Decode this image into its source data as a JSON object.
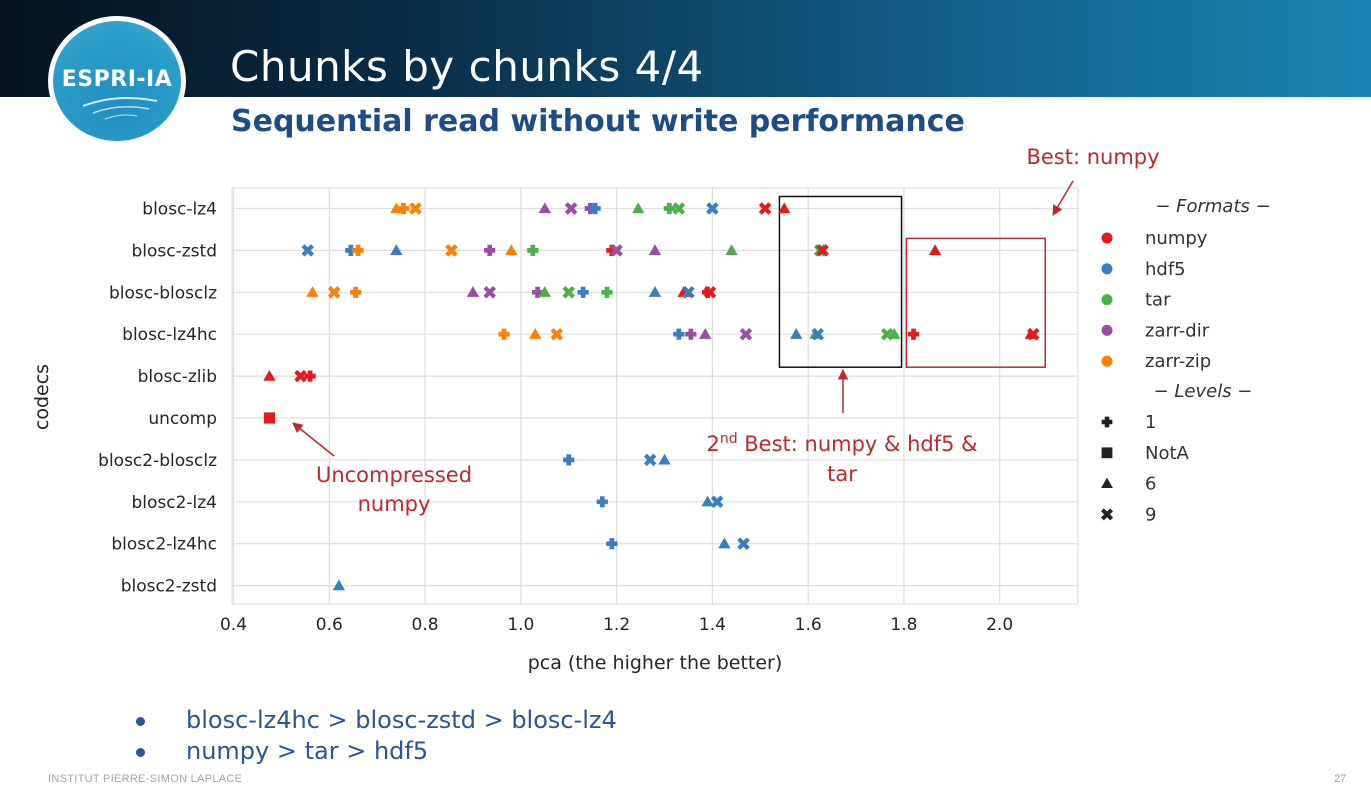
{
  "slide": {
    "logo_text": "ESPRI-IA",
    "title": "Chunks by chunks 4/4",
    "subtitle": "Sequential read without write performance",
    "bullets": [
      "blosc-lz4hc > blosc-zstd > blosc-lz4",
      "numpy > tar > hdf5"
    ],
    "footer": "INSTITUT PIERRE-SIMON LAPLACE",
    "page_number": "27"
  },
  "chart_data": {
    "type": "scatter",
    "title": "",
    "xlabel": "pca (the higher the better)",
    "ylabel": "codecs",
    "xlim": [
      0.4,
      2.15
    ],
    "xticks": [
      0.4,
      0.6,
      0.8,
      1.0,
      1.2,
      1.4,
      1.6,
      1.8,
      2.0
    ],
    "xtick_labels": [
      "0.4",
      "0.6",
      "0.8",
      "1.0",
      "1.2",
      "1.4",
      "1.6",
      "1.8",
      "2.0"
    ],
    "grid": true,
    "categories": [
      "blosc-lz4",
      "blosc-zstd",
      "blosc-blosclz",
      "blosc-lz4hc",
      "blosc-zlib",
      "uncomp",
      "blosc2-blosclz",
      "blosc2-lz4",
      "blosc2-lz4hc",
      "blosc2-zstd"
    ],
    "legend": {
      "placement": "right",
      "formats_title": "− Formats −",
      "levels_title": "− Levels −",
      "formats": [
        {
          "name": "numpy",
          "color": "#e31a1c"
        },
        {
          "name": "hdf5",
          "color": "#3a7ebf"
        },
        {
          "name": "tar",
          "color": "#4daf4a"
        },
        {
          "name": "zarr-dir",
          "color": "#984ea3"
        },
        {
          "name": "zarr-zip",
          "color": "#ff7f00"
        }
      ],
      "levels": [
        {
          "name": "1",
          "marker": "plus"
        },
        {
          "name": "NotA",
          "marker": "square"
        },
        {
          "name": "6",
          "marker": "triangle"
        },
        {
          "name": "9",
          "marker": "x"
        }
      ]
    },
    "points": [
      {
        "codec": "blosc-lz4",
        "format": "zarr-zip",
        "level": "6",
        "x": 0.74
      },
      {
        "codec": "blosc-lz4",
        "format": "zarr-zip",
        "level": "1",
        "x": 0.755
      },
      {
        "codec": "blosc-lz4",
        "format": "zarr-zip",
        "level": "9",
        "x": 0.78
      },
      {
        "codec": "blosc-lz4",
        "format": "zarr-dir",
        "level": "6",
        "x": 1.05
      },
      {
        "codec": "blosc-lz4",
        "format": "zarr-dir",
        "level": "9",
        "x": 1.105
      },
      {
        "codec": "blosc-lz4",
        "format": "zarr-dir",
        "level": "1",
        "x": 1.145
      },
      {
        "codec": "blosc-lz4",
        "format": "hdf5",
        "level": "1",
        "x": 1.155
      },
      {
        "codec": "blosc-lz4",
        "format": "tar",
        "level": "6",
        "x": 1.245
      },
      {
        "codec": "blosc-lz4",
        "format": "tar",
        "level": "1",
        "x": 1.31
      },
      {
        "codec": "blosc-lz4",
        "format": "tar",
        "level": "9",
        "x": 1.33
      },
      {
        "codec": "blosc-lz4",
        "format": "hdf5",
        "level": "9",
        "x": 1.4
      },
      {
        "codec": "blosc-lz4",
        "format": "numpy",
        "level": "9",
        "x": 1.51
      },
      {
        "codec": "blosc-lz4",
        "format": "numpy",
        "level": "6",
        "x": 1.55
      },
      {
        "codec": "blosc-zstd",
        "format": "hdf5",
        "level": "9",
        "x": 0.555
      },
      {
        "codec": "blosc-zstd",
        "format": "hdf5",
        "level": "1",
        "x": 0.645
      },
      {
        "codec": "blosc-zstd",
        "format": "zarr-zip",
        "level": "1",
        "x": 0.66
      },
      {
        "codec": "blosc-zstd",
        "format": "hdf5",
        "level": "6",
        "x": 0.74
      },
      {
        "codec": "blosc-zstd",
        "format": "zarr-zip",
        "level": "9",
        "x": 0.855
      },
      {
        "codec": "blosc-zstd",
        "format": "zarr-dir",
        "level": "1",
        "x": 0.935
      },
      {
        "codec": "blosc-zstd",
        "format": "zarr-zip",
        "level": "6",
        "x": 0.98
      },
      {
        "codec": "blosc-zstd",
        "format": "tar",
        "level": "1",
        "x": 1.025
      },
      {
        "codec": "blosc-zstd",
        "format": "numpy",
        "level": "1",
        "x": 1.19
      },
      {
        "codec": "blosc-zstd",
        "format": "zarr-dir",
        "level": "9",
        "x": 1.2
      },
      {
        "codec": "blosc-zstd",
        "format": "zarr-dir",
        "level": "6",
        "x": 1.28
      },
      {
        "codec": "blosc-zstd",
        "format": "tar",
        "level": "6",
        "x": 1.44
      },
      {
        "codec": "blosc-zstd",
        "format": "tar",
        "level": "9",
        "x": 1.625
      },
      {
        "codec": "blosc-zstd",
        "format": "numpy",
        "level": "9",
        "x": 1.63
      },
      {
        "codec": "blosc-zstd",
        "format": "numpy",
        "level": "6",
        "x": 1.865
      },
      {
        "codec": "blosc-blosclz",
        "format": "zarr-zip",
        "level": "6",
        "x": 0.565
      },
      {
        "codec": "blosc-blosclz",
        "format": "zarr-zip",
        "level": "9",
        "x": 0.61
      },
      {
        "codec": "blosc-blosclz",
        "format": "zarr-zip",
        "level": "1",
        "x": 0.655
      },
      {
        "codec": "blosc-blosclz",
        "format": "zarr-dir",
        "level": "6",
        "x": 0.9
      },
      {
        "codec": "blosc-blosclz",
        "format": "zarr-dir",
        "level": "9",
        "x": 0.935
      },
      {
        "codec": "blosc-blosclz",
        "format": "zarr-dir",
        "level": "1",
        "x": 1.035
      },
      {
        "codec": "blosc-blosclz",
        "format": "tar",
        "level": "6",
        "x": 1.05
      },
      {
        "codec": "blosc-blosclz",
        "format": "tar",
        "level": "9",
        "x": 1.1
      },
      {
        "codec": "blosc-blosclz",
        "format": "hdf5",
        "level": "1",
        "x": 1.13
      },
      {
        "codec": "blosc-blosclz",
        "format": "tar",
        "level": "1",
        "x": 1.18
      },
      {
        "codec": "blosc-blosclz",
        "format": "hdf5",
        "level": "6",
        "x": 1.28
      },
      {
        "codec": "blosc-blosclz",
        "format": "numpy",
        "level": "6",
        "x": 1.34
      },
      {
        "codec": "blosc-blosclz",
        "format": "hdf5",
        "level": "9",
        "x": 1.35
      },
      {
        "codec": "blosc-blosclz",
        "format": "numpy",
        "level": "1",
        "x": 1.39
      },
      {
        "codec": "blosc-blosclz",
        "format": "numpy",
        "level": "9",
        "x": 1.395
      },
      {
        "codec": "blosc-lz4hc",
        "format": "zarr-zip",
        "level": "1",
        "x": 0.965
      },
      {
        "codec": "blosc-lz4hc",
        "format": "zarr-zip",
        "level": "6",
        "x": 1.03
      },
      {
        "codec": "blosc-lz4hc",
        "format": "zarr-zip",
        "level": "9",
        "x": 1.075
      },
      {
        "codec": "blosc-lz4hc",
        "format": "hdf5",
        "level": "1",
        "x": 1.33
      },
      {
        "codec": "blosc-lz4hc",
        "format": "zarr-dir",
        "level": "1",
        "x": 1.355
      },
      {
        "codec": "blosc-lz4hc",
        "format": "zarr-dir",
        "level": "6",
        "x": 1.385
      },
      {
        "codec": "blosc-lz4hc",
        "format": "zarr-dir",
        "level": "9",
        "x": 1.47
      },
      {
        "codec": "blosc-lz4hc",
        "format": "hdf5",
        "level": "6",
        "x": 1.575
      },
      {
        "codec": "blosc-lz4hc",
        "format": "tar",
        "level": "6",
        "x": 1.615
      },
      {
        "codec": "blosc-lz4hc",
        "format": "hdf5",
        "level": "9",
        "x": 1.62
      },
      {
        "codec": "blosc-lz4hc",
        "format": "tar",
        "level": "9",
        "x": 1.765
      },
      {
        "codec": "blosc-lz4hc",
        "format": "tar",
        "level": "6",
        "x": 1.78
      },
      {
        "codec": "blosc-lz4hc",
        "format": "numpy",
        "level": "1",
        "x": 1.82
      },
      {
        "codec": "blosc-lz4hc",
        "format": "numpy",
        "level": "6",
        "x": 2.065
      },
      {
        "codec": "blosc-lz4hc",
        "format": "numpy",
        "level": "9",
        "x": 2.07
      },
      {
        "codec": "blosc-zlib",
        "format": "numpy",
        "level": "6",
        "x": 0.475
      },
      {
        "codec": "blosc-zlib",
        "format": "numpy",
        "level": "9",
        "x": 0.54
      },
      {
        "codec": "blosc-zlib",
        "format": "numpy",
        "level": "1",
        "x": 0.56
      },
      {
        "codec": "uncomp",
        "format": "numpy",
        "level": "NotA",
        "x": 0.475
      },
      {
        "codec": "blosc2-blosclz",
        "format": "hdf5",
        "level": "1",
        "x": 1.1
      },
      {
        "codec": "blosc2-blosclz",
        "format": "hdf5",
        "level": "9",
        "x": 1.27
      },
      {
        "codec": "blosc2-blosclz",
        "format": "hdf5",
        "level": "6",
        "x": 1.3
      },
      {
        "codec": "blosc2-lz4",
        "format": "hdf5",
        "level": "1",
        "x": 1.17
      },
      {
        "codec": "blosc2-lz4",
        "format": "hdf5",
        "level": "6",
        "x": 1.39
      },
      {
        "codec": "blosc2-lz4",
        "format": "hdf5",
        "level": "9",
        "x": 1.41
      },
      {
        "codec": "blosc2-lz4hc",
        "format": "hdf5",
        "level": "1",
        "x": 1.19
      },
      {
        "codec": "blosc2-lz4hc",
        "format": "hdf5",
        "level": "6",
        "x": 1.425
      },
      {
        "codec": "blosc2-lz4hc",
        "format": "hdf5",
        "level": "9",
        "x": 1.465
      },
      {
        "codec": "blosc2-zstd",
        "format": "hdf5",
        "level": "6",
        "x": 0.62
      }
    ],
    "highlight_boxes": [
      {
        "name": "box-second-best",
        "x0": 1.54,
        "x1": 1.795,
        "cat_from": 0,
        "cat_to": 3,
        "color": "#111111"
      },
      {
        "name": "box-best",
        "x0": 1.805,
        "x1": 2.095,
        "cat_from": 1,
        "cat_to": 3,
        "color": "#c1272d"
      }
    ],
    "annotations": {
      "best": "Best: numpy",
      "second_best_sup": "nd",
      "second_best_line1_prefix": "2",
      "second_best_line1_rest": " Best: numpy & hdf5 &",
      "second_best_line2": "tar",
      "uncompressed_line1": "Uncompressed",
      "uncompressed_line2": "numpy",
      "color": "#c1272d"
    }
  }
}
